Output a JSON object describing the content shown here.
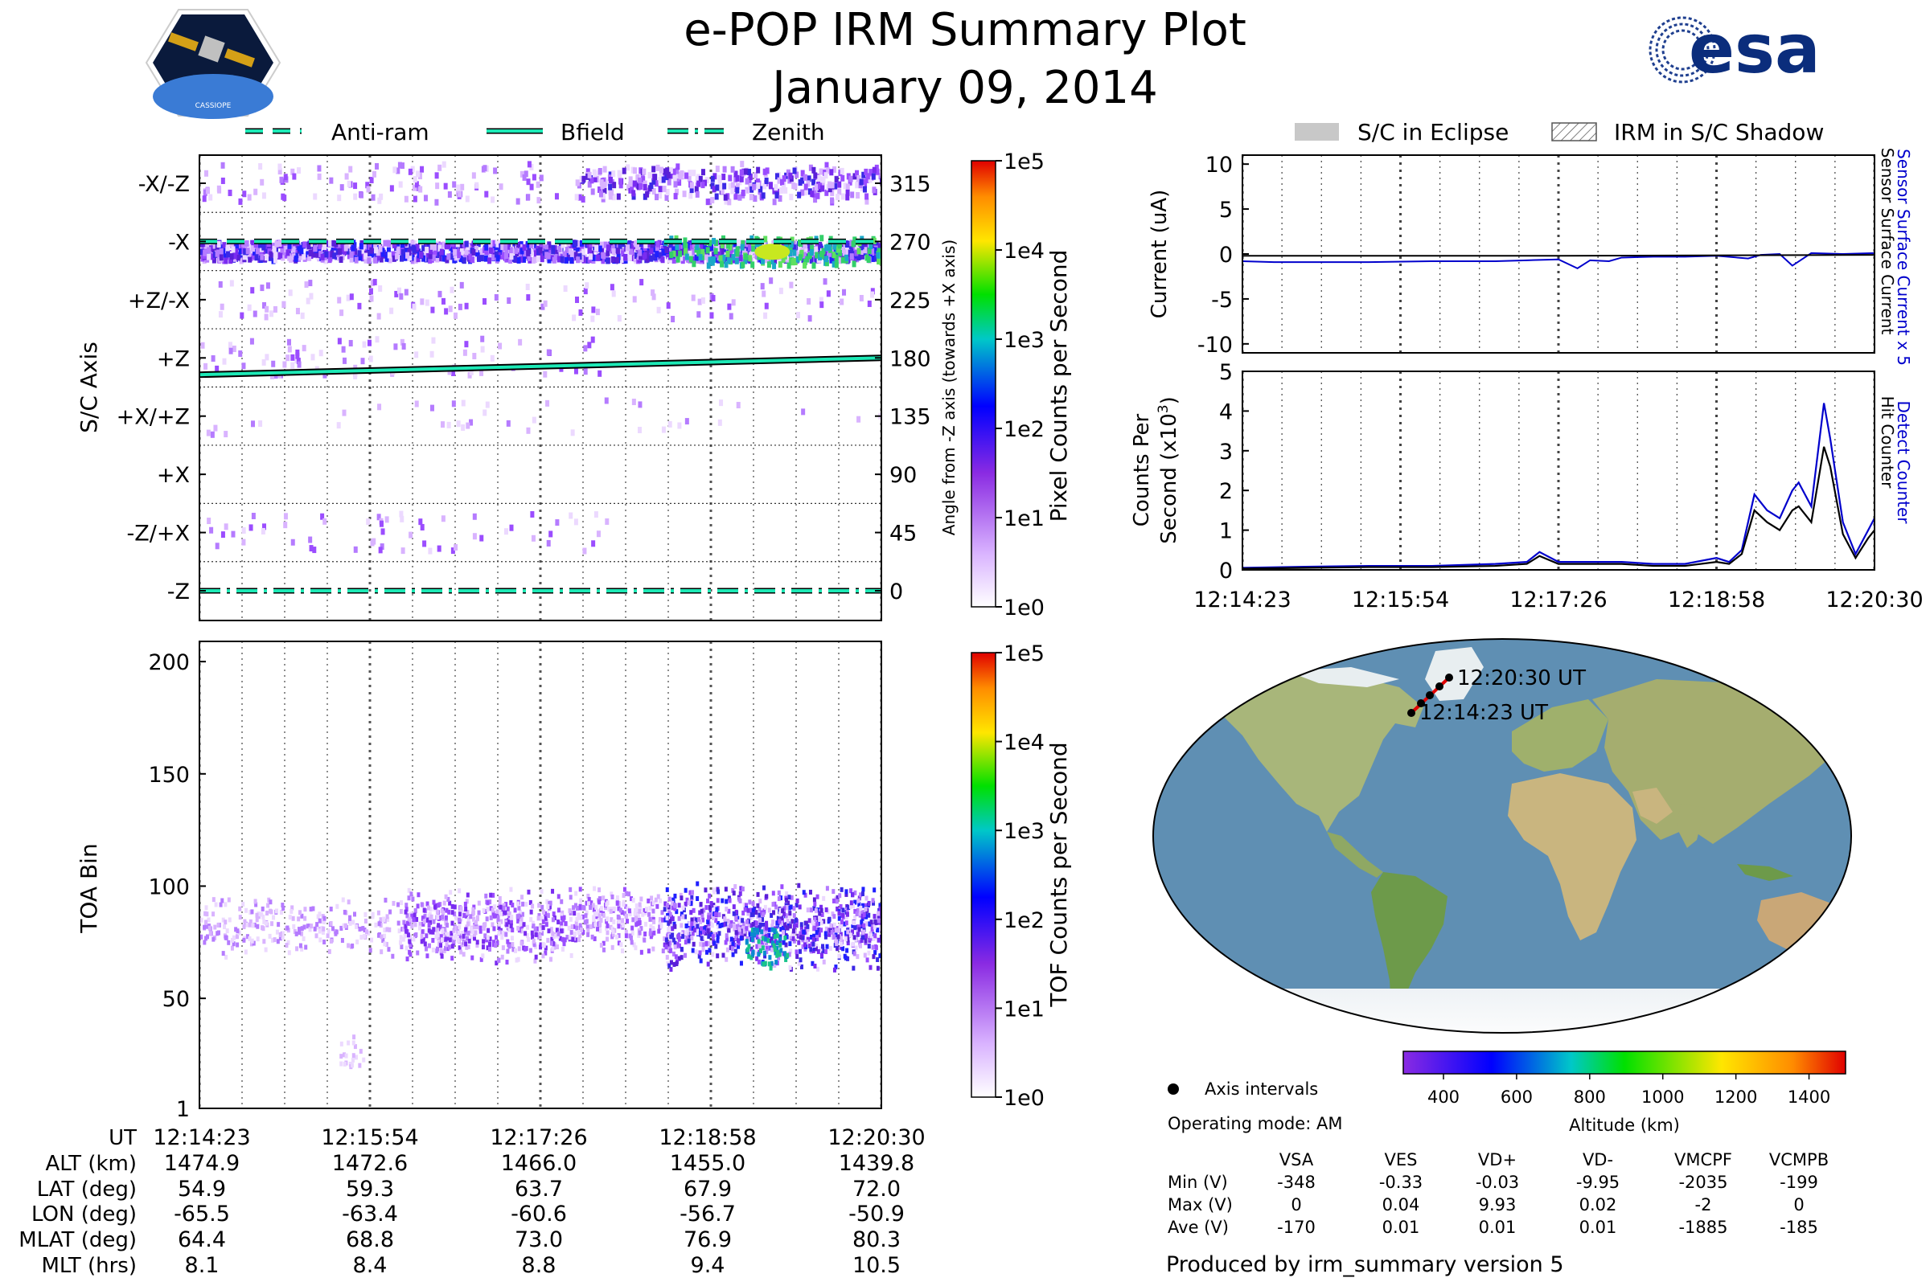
{
  "header": {
    "title": "e-POP IRM Summary Plot",
    "date": "January 09, 2014",
    "logo_left": "CASSIOPE",
    "logo_right": "esa"
  },
  "legends": {
    "left": [
      "Anti-ram",
      "Bfield",
      "Zenith"
    ],
    "right": [
      "S/C in Eclipse",
      "IRM in S/C Shadow"
    ]
  },
  "time_ticks": [
    "12:14:23",
    "12:15:54",
    "12:17:26",
    "12:18:58",
    "12:20:30"
  ],
  "sc_axis_panel": {
    "ylabel": "S/C Axis",
    "left_ticks": [
      "-X/-Z",
      "-X",
      "+Z/-X",
      "+Z",
      "+X/+Z",
      "+X",
      "-Z/+X",
      "-Z"
    ],
    "right_ticks": [
      "315",
      "270",
      "225",
      "180",
      "135",
      "90",
      "45",
      "0"
    ],
    "right_label": "Angle from -Z axis (towards +X axis)",
    "cbar_label": "Pixel Counts per Second",
    "cbar_ticks": [
      "1e5",
      "1e4",
      "1e3",
      "1e2",
      "1e1",
      "1e0"
    ]
  },
  "tof_panel": {
    "ylabel": "TOA Bin",
    "yticks": [
      "200",
      "150",
      "100",
      "50",
      "1"
    ],
    "cbar_label": "TOF Counts per Second",
    "cbar_ticks": [
      "1e5",
      "1e4",
      "1e3",
      "1e2",
      "1e1",
      "1e0"
    ]
  },
  "ephemeris": {
    "labels": [
      "UT",
      "ALT (km)",
      "LAT (deg)",
      "LON (deg)",
      "MLAT (deg)",
      "MLT (hrs)"
    ],
    "rows": [
      [
        "12:14:23",
        "12:15:54",
        "12:17:26",
        "12:18:58",
        "12:20:30"
      ],
      [
        "1474.9",
        "1472.6",
        "1466.0",
        "1455.0",
        "1439.8"
      ],
      [
        "54.9",
        "59.3",
        "63.7",
        "67.9",
        "72.0"
      ],
      [
        "-65.5",
        "-63.4",
        "-60.6",
        "-56.7",
        "-50.9"
      ],
      [
        "64.4",
        "68.8",
        "73.0",
        "76.9",
        "80.3"
      ],
      [
        "8.1",
        "8.4",
        "8.8",
        "9.4",
        "10.5"
      ]
    ]
  },
  "current_panel": {
    "ylabel": "Current (uA)",
    "yticks": [
      "10",
      "5",
      "0",
      "-5",
      "-10"
    ],
    "right_label_1": "Sensor Surface Current x 5",
    "right_label_2": "Sensor Surface Current"
  },
  "counts_panel": {
    "ylabel_1": "Counts Per",
    "ylabel_2": "Second (x10",
    "ylabel_sup": "3",
    "ylabel_close": ")",
    "yticks": [
      "5",
      "4",
      "3",
      "2",
      "1",
      "0"
    ],
    "right_label_1": "Detect Counter",
    "right_label_2": "Hit Counter"
  },
  "map": {
    "start_label": "12:14:23 UT",
    "end_label": "12:20:30 UT",
    "altitude_label": "Altitude (km)",
    "altitude_ticks": [
      "400",
      "600",
      "800",
      "1000",
      "1200",
      "1400"
    ],
    "axis_intervals_label": "Axis intervals",
    "operating_mode": "Operating mode: AM"
  },
  "voltages": {
    "columns": [
      "VSA",
      "VES",
      "VD+",
      "VD-",
      "VMCPF",
      "VCMPB"
    ],
    "rows": [
      {
        "label": "Min (V)",
        "values": [
          "-348",
          "-0.33",
          "-0.03",
          "-9.95",
          "-2035",
          "-199"
        ]
      },
      {
        "label": "Max (V)",
        "values": [
          "0",
          "0.04",
          "9.93",
          "0.02",
          "-2",
          "0"
        ]
      },
      {
        "label": "Ave (V)",
        "values": [
          "-170",
          "0.01",
          "0.01",
          "0.01",
          "-1885",
          "-185"
        ]
      }
    ]
  },
  "footer": "Produced by irm_summary version 5",
  "colors": {
    "cyan": "#1de9b6",
    "blue": "#0000cc",
    "black": "#000000",
    "ocean": "#5f8fb3",
    "land": "#a8b67a"
  },
  "chart_data": [
    {
      "type": "line",
      "name": "current",
      "xlabel": "",
      "ylabel": "Current (uA)",
      "x_ticks": [
        "12:14:23",
        "12:15:54",
        "12:17:26",
        "12:18:58",
        "12:20:30"
      ],
      "ylim": [
        -11,
        11
      ],
      "series": [
        {
          "name": "Sensor Surface Current x 5",
          "color": "#0000cc",
          "t": [
            0,
            0.05,
            0.1,
            0.2,
            0.3,
            0.4,
            0.45,
            0.5,
            0.53,
            0.55,
            0.58,
            0.6,
            0.65,
            0.7,
            0.75,
            0.8,
            0.82,
            0.85,
            0.87,
            0.9,
            0.95,
            1.0
          ],
          "values": [
            -0.8,
            -0.9,
            -0.9,
            -0.9,
            -0.8,
            -0.8,
            -0.7,
            -0.6,
            -1.6,
            -0.7,
            -0.8,
            -0.4,
            -0.3,
            -0.3,
            -0.2,
            -0.5,
            -0.1,
            0.0,
            -1.3,
            0.1,
            0.0,
            0.1
          ]
        },
        {
          "name": "Sensor Surface Current",
          "color": "#000000",
          "t": [
            0,
            0.5,
            1.0
          ],
          "values": [
            -0.2,
            -0.2,
            -0.1
          ]
        }
      ]
    },
    {
      "type": "line",
      "name": "counts",
      "xlabel": "",
      "ylabel": "Counts Per Second (x10^3)",
      "x_ticks": [
        "12:14:23",
        "12:15:54",
        "12:17:26",
        "12:18:58",
        "12:20:30"
      ],
      "ylim": [
        0,
        5
      ],
      "series": [
        {
          "name": "Detect Counter",
          "color": "#0000cc",
          "t": [
            0,
            0.1,
            0.2,
            0.3,
            0.4,
            0.45,
            0.47,
            0.5,
            0.6,
            0.65,
            0.7,
            0.75,
            0.77,
            0.79,
            0.81,
            0.83,
            0.85,
            0.87,
            0.88,
            0.9,
            0.92,
            0.93,
            0.95,
            0.97,
            0.99,
            1.0
          ],
          "values": [
            0.05,
            0.08,
            0.1,
            0.1,
            0.15,
            0.2,
            0.45,
            0.2,
            0.2,
            0.15,
            0.15,
            0.3,
            0.2,
            0.5,
            1.9,
            1.5,
            1.3,
            2.0,
            2.2,
            1.6,
            4.2,
            3.3,
            1.2,
            0.4,
            1.0,
            1.3
          ]
        },
        {
          "name": "Hit Counter",
          "color": "#000000",
          "t": [
            0,
            0.1,
            0.2,
            0.3,
            0.4,
            0.45,
            0.47,
            0.5,
            0.6,
            0.65,
            0.7,
            0.75,
            0.77,
            0.79,
            0.81,
            0.83,
            0.85,
            0.87,
            0.88,
            0.9,
            0.92,
            0.93,
            0.95,
            0.97,
            0.99,
            1.0
          ],
          "values": [
            0.03,
            0.05,
            0.07,
            0.07,
            0.1,
            0.15,
            0.35,
            0.15,
            0.15,
            0.1,
            0.1,
            0.2,
            0.15,
            0.4,
            1.5,
            1.2,
            1.0,
            1.5,
            1.6,
            1.2,
            3.1,
            2.6,
            0.9,
            0.3,
            0.8,
            1.0
          ]
        }
      ]
    },
    {
      "type": "line",
      "name": "sc-axis-lines",
      "ylabel": "S/C Axis",
      "ylim": [
        0,
        360
      ],
      "series": [
        {
          "name": "Anti-ram",
          "values": [
            270,
            270
          ]
        },
        {
          "name": "Bfield",
          "values": [
            167,
            180
          ]
        },
        {
          "name": "Zenith",
          "values": [
            0,
            0
          ]
        }
      ]
    }
  ]
}
